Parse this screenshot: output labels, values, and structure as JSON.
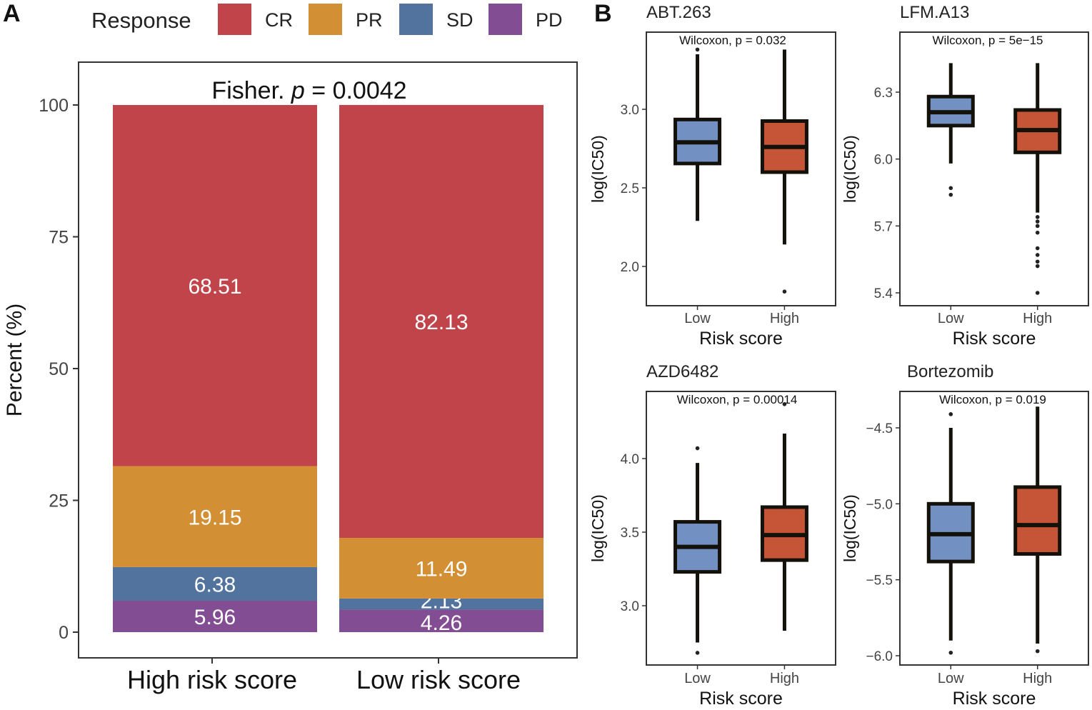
{
  "panel_labels": {
    "a": "A",
    "b": "B"
  },
  "legend": {
    "title": "Response",
    "items": [
      {
        "label": "CR",
        "color": "#C0444A"
      },
      {
        "label": "PR",
        "color": "#D38F34"
      },
      {
        "label": "SD",
        "color": "#52739E"
      },
      {
        "label": "PD",
        "color": "#834D94"
      }
    ]
  },
  "colors": {
    "low_box": "#7390C3",
    "high_box": "#C65538",
    "box_stroke": "#13110A",
    "bar_text": "#ffffff"
  },
  "chart_data": [
    {
      "type": "bar",
      "stacked": true,
      "annotation_prefix": "Fisher. ",
      "annotation_p": "p",
      "annotation_value": " = 0.0042",
      "ylabel": "Percent (%)",
      "ylim": [
        0,
        100
      ],
      "yticks": [
        0,
        25,
        50,
        75,
        100
      ],
      "categories": [
        "High risk score",
        "Low risk score"
      ],
      "series": [
        {
          "name": "PD",
          "values": [
            5.96,
            4.26
          ],
          "labels": [
            "5.96",
            "4.26"
          ]
        },
        {
          "name": "SD",
          "values": [
            6.38,
            2.13
          ],
          "labels": [
            "6.38",
            "2.13"
          ]
        },
        {
          "name": "PR",
          "values": [
            19.15,
            11.49
          ],
          "labels": [
            "19.15",
            "11.49"
          ]
        },
        {
          "name": "CR",
          "values": [
            68.51,
            82.13
          ],
          "labels": [
            "68.51",
            "82.13"
          ]
        }
      ]
    },
    {
      "type": "box",
      "title": "ABT.263",
      "annotation": "Wilcoxon, p = 0.032",
      "xlabel": "Risk score",
      "ylabel": "log(IC50)",
      "ylim": [
        1.75,
        3.5
      ],
      "yticks": [
        "2.0",
        "2.5",
        "3.0"
      ],
      "categories": [
        "Low",
        "High"
      ],
      "boxes": [
        {
          "q1": 2.655,
          "median": 2.79,
          "q3": 2.935,
          "whisker_low": 2.29,
          "whisker_high": 3.35,
          "outliers": [
            3.38
          ]
        },
        {
          "q1": 2.6,
          "median": 2.76,
          "q3": 2.925,
          "whisker_low": 2.14,
          "whisker_high": 3.38,
          "outliers": [
            1.84
          ]
        }
      ]
    },
    {
      "type": "box",
      "title": "LFM.A13",
      "annotation": "Wilcoxon, p = 5e−15",
      "xlabel": "Risk score",
      "ylabel": "log(IC50)",
      "ylim": [
        5.34,
        6.58
      ],
      "yticks": [
        "5.4",
        "5.7",
        "6.0",
        "6.3"
      ],
      "categories": [
        "Low",
        "High"
      ],
      "boxes": [
        {
          "q1": 6.15,
          "median": 6.21,
          "q3": 6.28,
          "whisker_low": 5.98,
          "whisker_high": 6.43,
          "outliers": [
            5.87,
            5.84
          ]
        },
        {
          "q1": 6.03,
          "median": 6.13,
          "q3": 6.22,
          "whisker_low": 5.76,
          "whisker_high": 6.43,
          "outliers": [
            5.74,
            5.72,
            5.7,
            5.67,
            5.6,
            5.57,
            5.54,
            5.52,
            5.4
          ]
        }
      ]
    },
    {
      "type": "box",
      "title": "AZD6482",
      "annotation": "Wilcoxon, p = 0.00014",
      "xlabel": "Risk score",
      "ylabel": "log(IC50)",
      "ylim": [
        2.6,
        4.5
      ],
      "yticks": [
        "3.0",
        "3.5",
        "4.0"
      ],
      "categories": [
        "Low",
        "High"
      ],
      "boxes": [
        {
          "q1": 3.23,
          "median": 3.4,
          "q3": 3.57,
          "whisker_low": 2.75,
          "whisker_high": 3.97,
          "outliers": [
            4.07,
            2.68
          ]
        },
        {
          "q1": 3.31,
          "median": 3.48,
          "q3": 3.67,
          "whisker_low": 2.83,
          "whisker_high": 4.17,
          "outliers": [
            4.37
          ]
        }
      ]
    },
    {
      "type": "box",
      "title": "Bortezomib",
      "annotation": "Wilcoxon, p = 0.019",
      "xlabel": "Risk score",
      "ylabel": "log(IC50)",
      "ylim": [
        -6.1,
        -4.28
      ],
      "yticks": [
        "−4.5",
        "−5.0",
        "−5.5",
        "−6.0"
      ],
      "categories": [
        "Low",
        "High"
      ],
      "boxes": [
        {
          "q1": -5.38,
          "median": -5.2,
          "q3": -5.0,
          "whisker_low": -5.9,
          "whisker_high": -4.5,
          "outliers": [
            -4.41,
            -5.98
          ]
        },
        {
          "q1": -5.33,
          "median": -5.14,
          "q3": -4.89,
          "whisker_low": -5.92,
          "whisker_high": -4.36,
          "outliers": [
            -5.97
          ]
        }
      ]
    }
  ]
}
